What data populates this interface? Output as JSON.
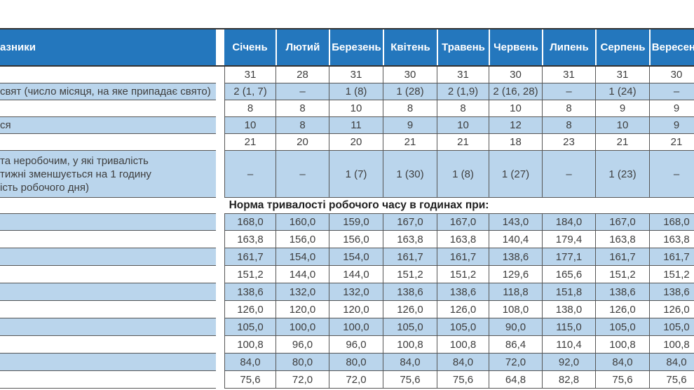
{
  "colors": {
    "header_blue": "#2477bd",
    "row_blue": "#bad5ec",
    "grid_line": "#565656",
    "text_dark": "#3e3e3e"
  },
  "table": {
    "header_label_fragment": "азники",
    "months": [
      "Січень",
      "Лютий",
      "Березень",
      "Квітень",
      "Травень",
      "Червень",
      "Липень",
      "Серпень",
      "Вересень"
    ],
    "calendar_section": {
      "rows": [
        {
          "label_lines": [],
          "values": [
            "31",
            "28",
            "31",
            "30",
            "31",
            "30",
            "31",
            "31",
            "30"
          ]
        },
        {
          "label_lines": [
            "свят (число місяця, на яке припадає свято)"
          ],
          "values": [
            "2 (1, 7)",
            "–",
            "1 (8)",
            "1 (28)",
            "2 (1,9)",
            "2 (16, 28)",
            "–",
            "1 (24)",
            "–"
          ]
        },
        {
          "label_lines": [],
          "values": [
            "8",
            "8",
            "10",
            "8",
            "8",
            "10",
            "8",
            "9",
            "9"
          ]
        },
        {
          "label_lines": [
            "ся"
          ],
          "values": [
            "10",
            "8",
            "11",
            "9",
            "10",
            "12",
            "8",
            "10",
            "9"
          ]
        },
        {
          "label_lines": [],
          "values": [
            "21",
            "20",
            "20",
            "21",
            "21",
            "18",
            "23",
            "21",
            "21"
          ]
        },
        {
          "label_lines": [
            "та неробочим, у які тривалість",
            "тижні зменшується на 1 годину",
            "ість робочого дня)"
          ],
          "values": [
            "–",
            "–",
            "1 (7)",
            "1 (30)",
            "1 (8)",
            "1 (27)",
            "–",
            "1 (23)",
            "–"
          ]
        }
      ]
    },
    "section_title": "Норма тривалості робочого часу в годинах при:",
    "hours_section": {
      "rows": [
        [
          "168,0",
          "160,0",
          "159,0",
          "167,0",
          "167,0",
          "143,0",
          "184,0",
          "167,0",
          "168,0"
        ],
        [
          "163,8",
          "156,0",
          "156,0",
          "163,8",
          "163,8",
          "140,4",
          "179,4",
          "163,8",
          "163,8"
        ],
        [
          "161,7",
          "154,0",
          "154,0",
          "161,7",
          "161,7",
          "138,6",
          "177,1",
          "161,7",
          "161,7"
        ],
        [
          "151,2",
          "144,0",
          "144,0",
          "151,2",
          "151,2",
          "129,6",
          "165,6",
          "151,2",
          "151,2"
        ],
        [
          "138,6",
          "132,0",
          "132,0",
          "138,6",
          "138,6",
          "118,8",
          "151,8",
          "138,6",
          "138,6"
        ],
        [
          "126,0",
          "120,0",
          "120,0",
          "126,0",
          "126,0",
          "108,0",
          "138,0",
          "126,0",
          "126,0"
        ],
        [
          "105,0",
          "100,0",
          "100,0",
          "105,0",
          "105,0",
          "90,0",
          "115,0",
          "105,0",
          "105,0"
        ],
        [
          "100,8",
          "96,0",
          "96,0",
          "100,8",
          "100,8",
          "86,4",
          "110,4",
          "100,8",
          "100,8"
        ],
        [
          "84,0",
          "80,0",
          "80,0",
          "84,0",
          "84,0",
          "72,0",
          "92,0",
          "84,0",
          "84,0"
        ],
        [
          "75,6",
          "72,0",
          "72,0",
          "75,6",
          "75,6",
          "64,8",
          "82,8",
          "75,6",
          "75,6"
        ]
      ]
    }
  }
}
